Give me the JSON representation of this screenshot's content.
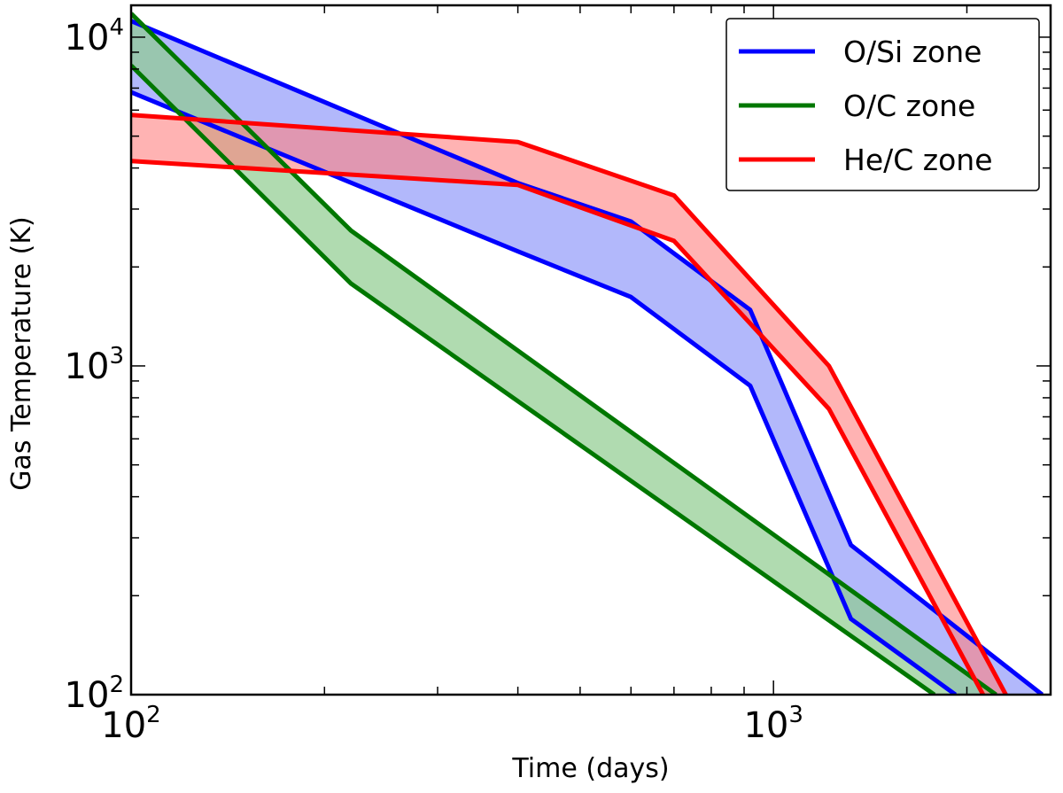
{
  "chart_data": {
    "type": "area",
    "xscale": "log",
    "yscale": "log",
    "xlim": [
      100,
      2700
    ],
    "ylim": [
      100,
      12500
    ],
    "xlabel": "Time (days)",
    "ylabel": "Gas Temperature (K)",
    "xticks": [
      {
        "value": 100,
        "base": "10",
        "exp": "2"
      },
      {
        "value": 1000,
        "base": "10",
        "exp": "3"
      }
    ],
    "yticks": [
      {
        "value": 100,
        "base": "10",
        "exp": "2"
      },
      {
        "value": 1000,
        "base": "10",
        "exp": "3"
      },
      {
        "value": 10000,
        "base": "10",
        "exp": "4"
      }
    ],
    "legend": {
      "location": "top-right"
    },
    "series": [
      {
        "name": "O/Si zone",
        "color": "#0000ff",
        "fill": "#aab0fb",
        "fill_opacity": 0.9,
        "upper": [
          [
            100,
            11200
          ],
          [
            400,
            3600
          ],
          [
            600,
            2750
          ],
          [
            920,
            1480
          ],
          [
            1320,
            285
          ],
          [
            2620,
            100
          ]
        ],
        "lower": [
          [
            100,
            6800
          ],
          [
            400,
            2230
          ],
          [
            600,
            1620
          ],
          [
            920,
            870
          ],
          [
            1320,
            170
          ],
          [
            1920,
            100
          ]
        ]
      },
      {
        "name": "O/C zone",
        "color": "#007700",
        "fill": "#8fcc8f",
        "fill_opacity": 0.7,
        "upper": [
          [
            100,
            11800
          ],
          [
            220,
            2580
          ],
          [
            2220,
            100
          ]
        ],
        "lower": [
          [
            100,
            8200
          ],
          [
            220,
            1780
          ],
          [
            1780,
            100
          ]
        ]
      },
      {
        "name": "He/C zone",
        "color": "#ff0000",
        "fill": "#ff8080",
        "fill_opacity": 0.6,
        "upper": [
          [
            100,
            5800
          ],
          [
            400,
            4800
          ],
          [
            700,
            3300
          ],
          [
            1220,
            1000
          ],
          [
            2300,
            100
          ]
        ],
        "lower": [
          [
            100,
            4200
          ],
          [
            400,
            3550
          ],
          [
            700,
            2400
          ],
          [
            1220,
            740
          ],
          [
            2120,
            100
          ]
        ]
      }
    ]
  }
}
